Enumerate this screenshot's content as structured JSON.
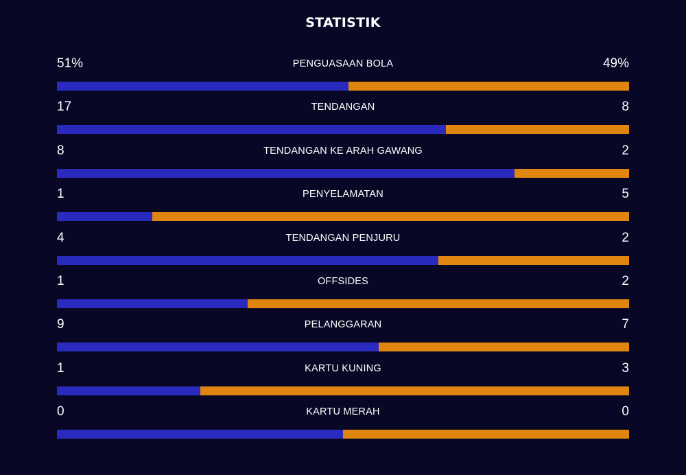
{
  "title": "STATISTIK",
  "colors": {
    "background": "#080826",
    "home_bar": "#2a2abf",
    "away_bar": "#e0850f",
    "text": "#ffffff"
  },
  "stats": [
    {
      "label": "PENGUASAAN BOLA",
      "left_text": "51%",
      "right_text": "49%",
      "left": 51,
      "right": 49
    },
    {
      "label": "TENDANGAN",
      "left_text": "17",
      "right_text": "8",
      "left": 17,
      "right": 8
    },
    {
      "label": "TENDANGAN KE ARAH GAWANG",
      "left_text": "8",
      "right_text": "2",
      "left": 8,
      "right": 2
    },
    {
      "label": "PENYELAMATAN",
      "left_text": "1",
      "right_text": "5",
      "left": 1,
      "right": 5
    },
    {
      "label": "TENDANGAN PENJURU",
      "left_text": "4",
      "right_text": "2",
      "left": 4,
      "right": 2
    },
    {
      "label": "OFFSIDES",
      "left_text": "1",
      "right_text": "2",
      "left": 1,
      "right": 2
    },
    {
      "label": "PELANGGARAN",
      "left_text": "9",
      "right_text": "7",
      "left": 9,
      "right": 7
    },
    {
      "label": "KARTU KUNING",
      "left_text": "1",
      "right_text": "3",
      "left": 1,
      "right": 3
    },
    {
      "label": "KARTU MERAH",
      "left_text": "0",
      "right_text": "0",
      "left": 0,
      "right": 0
    }
  ]
}
